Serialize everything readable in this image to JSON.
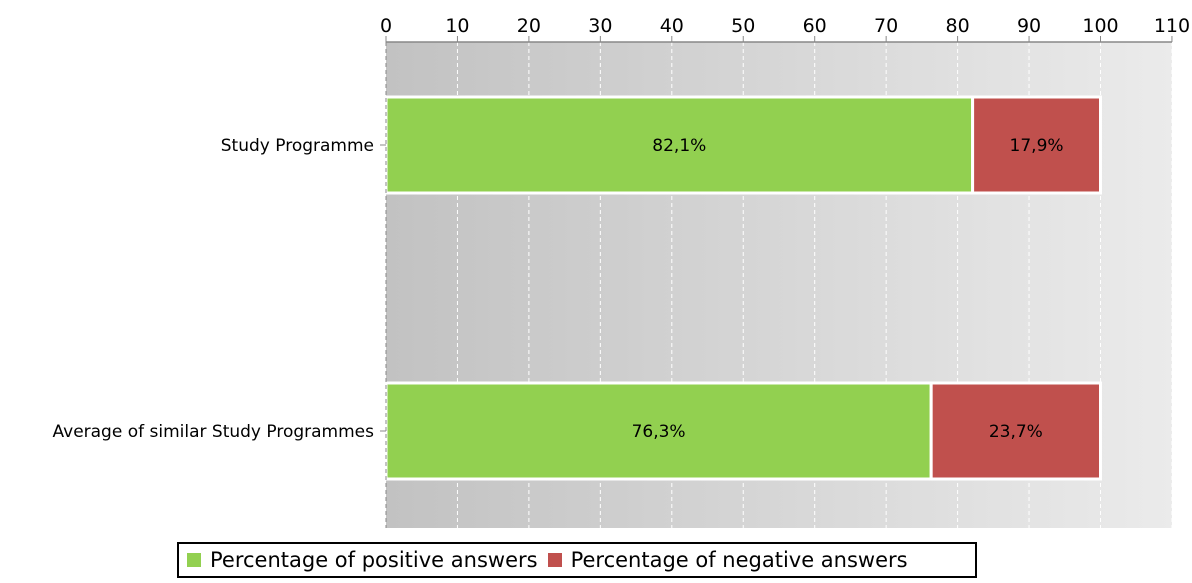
{
  "chart_data": {
    "type": "bar",
    "orientation": "horizontal",
    "stacked": true,
    "categories": [
      "Study Programme",
      "Average of similar Study Programmes"
    ],
    "series": [
      {
        "name": "Percentage of positive answers",
        "values": [
          82.1,
          76.3
        ],
        "labels": [
          "82,1%",
          "76,3%"
        ],
        "color": "#92d050"
      },
      {
        "name": "Percentage of negative answers",
        "values": [
          17.9,
          23.7
        ],
        "labels": [
          "17,9%",
          "23,7%"
        ],
        "color": "#c0504d"
      }
    ],
    "xlim": [
      0,
      110
    ],
    "xticks": [
      "0",
      "10",
      "20",
      "30",
      "40",
      "50",
      "60",
      "70",
      "80",
      "90",
      "100",
      "110"
    ],
    "xaxis_position": "top",
    "grid": true,
    "legend_position": "bottom"
  }
}
